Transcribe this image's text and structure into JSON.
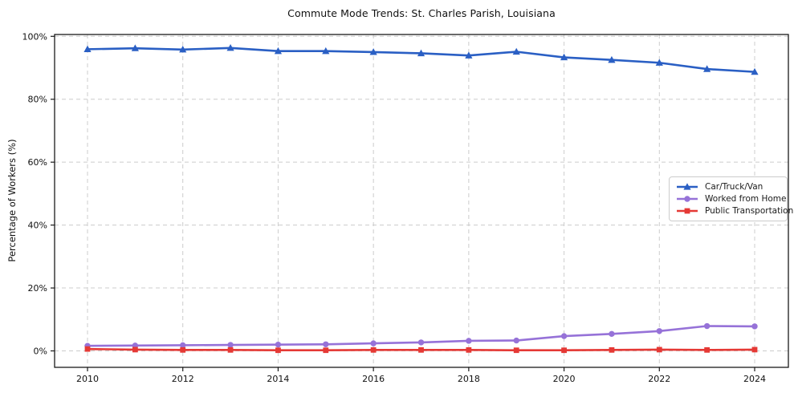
{
  "title": "Commute Mode Trends: St. Charles Parish, Louisiana",
  "chart_data": {
    "type": "line",
    "title": "Commute Mode Trends: St. Charles Parish, Louisiana",
    "xlabel": "",
    "ylabel": "Percentage of Workers (%)",
    "x": [
      2010,
      2011,
      2012,
      2013,
      2014,
      2015,
      2016,
      2017,
      2018,
      2019,
      2020,
      2021,
      2022,
      2023,
      2024
    ],
    "series": [
      {
        "name": "Car/Truck/Van",
        "color": "#2a5fc4",
        "marker": "triangle",
        "values": [
          95.9,
          96.2,
          95.8,
          96.3,
          95.3,
          95.3,
          95.0,
          94.6,
          93.9,
          95.1,
          93.3,
          92.5,
          91.6,
          89.6,
          88.7
        ]
      },
      {
        "name": "Worked from Home",
        "color": "#9672d8",
        "marker": "circle",
        "values": [
          1.6,
          1.7,
          1.8,
          1.9,
          2.0,
          2.1,
          2.4,
          2.7,
          3.2,
          3.3,
          4.7,
          5.4,
          6.3,
          7.9,
          7.8
        ]
      },
      {
        "name": "Public Transportation",
        "color": "#e53935",
        "marker": "square",
        "values": [
          0.6,
          0.4,
          0.3,
          0.3,
          0.2,
          0.2,
          0.3,
          0.3,
          0.3,
          0.2,
          0.2,
          0.3,
          0.4,
          0.3,
          0.4
        ]
      }
    ],
    "ylim": [
      0,
      100
    ],
    "yticks": [
      0,
      20,
      40,
      60,
      80,
      100
    ],
    "ytick_labels": [
      "0%",
      "20%",
      "40%",
      "60%",
      "80%",
      "100%"
    ],
    "xticks": [
      2010,
      2012,
      2014,
      2016,
      2018,
      2020,
      2022,
      2024
    ],
    "xtick_labels": [
      "2010",
      "2012",
      "2014",
      "2016",
      "2018",
      "2020",
      "2022",
      "2024"
    ],
    "grid": true,
    "grid_style": "dashed",
    "legend_position": "center right"
  },
  "colors": {
    "grid": "#cccccc",
    "spine": "#1a1a1a",
    "tick_text": "#111111",
    "background": "#ffffff"
  }
}
